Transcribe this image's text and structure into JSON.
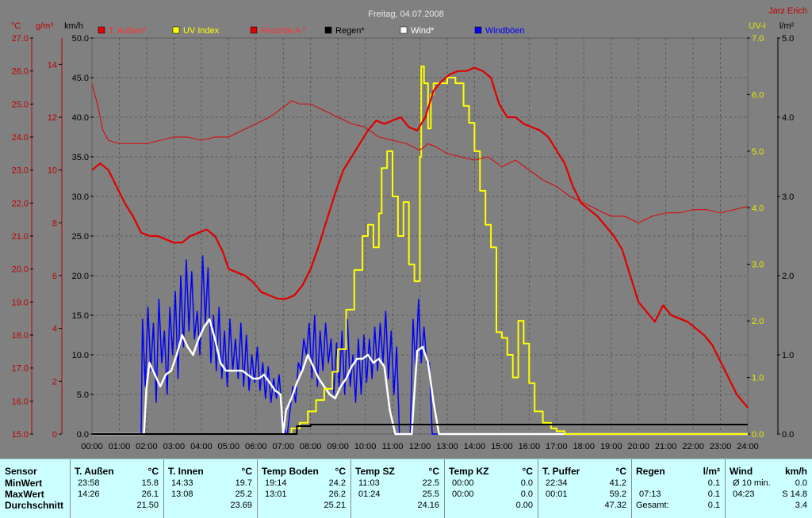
{
  "title": "Freitag, 04.07.2008",
  "author": "Jarz Erich",
  "axis_units": {
    "temp": "°C",
    "humidity": "g/m³",
    "wind": "km/h",
    "uv": "UV-I",
    "rain": "l/m²"
  },
  "legend": [
    {
      "label": "T. Außen*",
      "color": "#e00000",
      "text_color": "#ff3030"
    },
    {
      "label": "UV Index",
      "color": "#ffff00",
      "text_color": "#ffff00"
    },
    {
      "label": "Feuchte A.*",
      "color": "#e00000",
      "text_color": "#ff3030"
    },
    {
      "label": "Regen*",
      "color": "#000000",
      "text_color": "#000000"
    },
    {
      "label": "Wind*",
      "color": "#ffffff",
      "text_color": "#ffffff"
    },
    {
      "label": "Windböen",
      "color": "#0000ff",
      "text_color": "#0000ff"
    }
  ],
  "colors": {
    "background": "#808080",
    "grid": "#5a5a5a",
    "temp": "#e00000",
    "uv": "#ffff00",
    "rain": "#000000",
    "wind": "#ffffff",
    "gust": "#0000ff"
  },
  "chart_data": {
    "type": "line",
    "x_label_hours": [
      "00:00",
      "01:00",
      "02:00",
      "03:00",
      "04:00",
      "05:00",
      "06:00",
      "07:00",
      "08:00",
      "09:00",
      "10:00",
      "11:00",
      "12:00",
      "13:00",
      "14:00",
      "15:00",
      "16:00",
      "17:00",
      "18:00",
      "19:00",
      "20:00",
      "21:00",
      "22:00",
      "23:00",
      "24:00"
    ],
    "axes": {
      "temp_ticks": [
        "27.0",
        "26.0",
        "25.0",
        "24.0",
        "23.0",
        "22.0",
        "21.0",
        "20.0",
        "19.0",
        "18.0",
        "17.0",
        "16.0",
        "15.0"
      ],
      "temp_range": [
        15,
        27
      ],
      "humidity_ticks": [
        "14",
        "12",
        "10",
        "8",
        "6",
        "4",
        "2",
        "0"
      ],
      "humidity_range": [
        0,
        15
      ],
      "wind_ticks": [
        "50.0",
        "45.0",
        "40.0",
        "35.0",
        "30.0",
        "25.0",
        "20.0",
        "15.0",
        "10.0",
        "5.0",
        "0.0"
      ],
      "wind_range": [
        0,
        50
      ],
      "uv_ticks": [
        "7.0",
        "6.0",
        "5.0",
        "4.0",
        "3.0",
        "2.0",
        "1.0",
        "0.0"
      ],
      "uv_range": [
        0,
        7
      ],
      "rain_ticks": [
        "5.0",
        "4.0",
        "3.0",
        "2.0",
        "1.0",
        "0.0"
      ],
      "rain_range": [
        0,
        5
      ]
    },
    "series": [
      {
        "name": "T. Außen*",
        "axis": "temp",
        "x": [
          0,
          0.3,
          0.6,
          0.9,
          1.2,
          1.5,
          1.8,
          2.1,
          2.4,
          2.7,
          3.0,
          3.3,
          3.6,
          3.9,
          4.2,
          4.5,
          4.8,
          5.0,
          5.3,
          5.6,
          5.9,
          6.2,
          6.5,
          6.8,
          7.1,
          7.4,
          7.7,
          8.0,
          8.3,
          8.6,
          8.9,
          9.2,
          9.5,
          9.8,
          10.1,
          10.4,
          10.7,
          11.0,
          11.3,
          11.6,
          11.9,
          12.2,
          12.5,
          12.8,
          13.1,
          13.4,
          13.7,
          14.0,
          14.3,
          14.6,
          14.9,
          15.2,
          15.5,
          15.8,
          16.1,
          16.4,
          16.7,
          17.0,
          17.3,
          17.6,
          17.9,
          18.2,
          18.5,
          18.8,
          19.1,
          19.4,
          19.7,
          20.0,
          20.3,
          20.6,
          20.9,
          21.2,
          21.5,
          21.8,
          22.1,
          22.4,
          22.7,
          23.0,
          23.3,
          23.6,
          24.0
        ],
        "y": [
          23.0,
          23.2,
          23.0,
          22.5,
          22.0,
          21.6,
          21.1,
          21.0,
          21.0,
          20.9,
          20.8,
          20.8,
          21.0,
          21.1,
          21.2,
          21.0,
          20.5,
          20.0,
          19.9,
          19.8,
          19.6,
          19.3,
          19.2,
          19.1,
          19.1,
          19.2,
          19.5,
          20.0,
          20.7,
          21.5,
          22.3,
          23.0,
          23.4,
          23.8,
          24.2,
          24.5,
          24.4,
          24.5,
          24.6,
          24.3,
          24.2,
          24.6,
          25.4,
          25.7,
          25.9,
          26.0,
          26.0,
          26.1,
          26.0,
          25.8,
          25.0,
          24.6,
          24.6,
          24.4,
          24.3,
          24.2,
          24.0,
          23.6,
          23.2,
          22.5,
          22.0,
          21.8,
          21.6,
          21.3,
          21.0,
          20.6,
          19.8,
          19.0,
          18.7,
          18.4,
          18.9,
          18.6,
          18.5,
          18.4,
          18.2,
          18.0,
          17.7,
          17.2,
          16.7,
          16.2,
          15.8
        ]
      },
      {
        "name": "Feuchte A.*",
        "axis": "temp",
        "x": [
          0,
          0.2,
          0.4,
          0.6,
          1.0,
          1.5,
          2.0,
          2.5,
          3.0,
          3.5,
          4.0,
          4.5,
          5.0,
          5.5,
          6.0,
          6.5,
          7.0,
          7.3,
          7.6,
          8.0,
          8.5,
          9.0,
          9.5,
          10.0,
          10.5,
          11.0,
          11.5,
          12.0,
          12.3,
          12.6,
          13.0,
          13.5,
          14.0,
          14.5,
          15.0,
          15.5,
          16.0,
          16.5,
          17.0,
          17.5,
          18.0,
          18.5,
          19.0,
          19.5,
          20.0,
          20.5,
          21.0,
          21.5,
          22.0,
          22.5,
          23.0,
          23.5,
          24.0
        ],
        "y": [
          25.6,
          25.0,
          24.2,
          23.9,
          23.8,
          23.8,
          23.8,
          23.9,
          24.0,
          24.0,
          23.9,
          24.0,
          24.0,
          24.2,
          24.4,
          24.6,
          24.9,
          25.1,
          25.0,
          25.0,
          24.8,
          24.6,
          24.4,
          24.3,
          24.0,
          23.9,
          23.8,
          23.6,
          23.8,
          23.7,
          23.5,
          23.4,
          23.3,
          23.4,
          23.1,
          23.3,
          23.0,
          22.7,
          22.5,
          22.2,
          22.0,
          21.8,
          21.6,
          21.6,
          21.4,
          21.6,
          21.7,
          21.7,
          21.8,
          21.8,
          21.7,
          21.8,
          21.9
        ]
      },
      {
        "name": "UV Index",
        "axis": "uv",
        "x": [
          0,
          7.0,
          7.3,
          7.6,
          7.9,
          8.2,
          8.5,
          8.8,
          9.0,
          9.3,
          9.6,
          9.9,
          10.1,
          10.3,
          10.5,
          10.6,
          10.8,
          11.0,
          11.2,
          11.4,
          11.6,
          11.8,
          12.0,
          12.05,
          12.15,
          12.3,
          12.4,
          12.5,
          12.7,
          13.0,
          13.3,
          13.6,
          13.8,
          14.0,
          14.2,
          14.4,
          14.6,
          14.8,
          15.0,
          15.2,
          15.4,
          15.6,
          15.8,
          16.0,
          16.2,
          16.5,
          16.8,
          17.0,
          17.3,
          17.6,
          17.9,
          18.2,
          24.0
        ],
        "y": [
          0,
          0,
          0.1,
          0.2,
          0.4,
          0.6,
          0.8,
          1.1,
          1.5,
          2.2,
          2.9,
          3.5,
          3.7,
          3.3,
          3.9,
          4.7,
          5.0,
          4.2,
          3.5,
          4.1,
          3.0,
          2.7,
          4.9,
          6.5,
          6.2,
          5.4,
          6.0,
          6.2,
          6.2,
          6.3,
          6.2,
          5.8,
          5.5,
          5.0,
          4.3,
          3.7,
          3.3,
          1.8,
          1.7,
          1.4,
          1.0,
          2.0,
          1.6,
          0.9,
          0.4,
          0.2,
          0.1,
          0.05,
          0,
          0,
          0,
          0,
          0
        ]
      },
      {
        "name": "Wind*",
        "axis": "wind",
        "x": [
          0,
          1.9,
          2.0,
          2.1,
          2.3,
          2.5,
          2.7,
          2.9,
          3.1,
          3.3,
          3.5,
          3.7,
          3.9,
          4.1,
          4.3,
          4.5,
          4.7,
          4.9,
          5.1,
          5.3,
          5.5,
          5.7,
          5.9,
          6.1,
          6.3,
          6.5,
          6.7,
          6.9,
          7.0,
          7.1,
          7.3,
          7.5,
          7.7,
          7.9,
          8.1,
          8.3,
          8.5,
          8.7,
          8.9,
          9.1,
          9.3,
          9.5,
          9.7,
          9.9,
          10.1,
          10.3,
          10.5,
          10.7,
          10.9,
          11.1,
          11.3,
          11.5,
          11.7,
          11.9,
          12.1,
          12.3,
          12.5,
          12.7,
          24.0
        ],
        "y": [
          0,
          0,
          6.0,
          9.0,
          7.5,
          6.0,
          7.5,
          8.0,
          10.0,
          12.5,
          11.0,
          10.0,
          12.0,
          13.5,
          14.5,
          12.0,
          9.0,
          8.0,
          8.0,
          8.0,
          8.0,
          7.5,
          7.0,
          7.0,
          7.5,
          6.5,
          5.5,
          5.0,
          0,
          3.0,
          4.5,
          6.5,
          8.0,
          10.0,
          8.5,
          7.0,
          6.0,
          5.0,
          4.5,
          6.0,
          7.0,
          8.5,
          9.5,
          9.5,
          10.0,
          9.0,
          9.5,
          8.5,
          3.0,
          0,
          0,
          0,
          0,
          10.5,
          11.0,
          9.0,
          4.0,
          0,
          0
        ]
      },
      {
        "name": "Windböen",
        "axis": "wind",
        "x": [
          0,
          1.8,
          1.85,
          1.95,
          2.05,
          2.15,
          2.25,
          2.35,
          2.45,
          2.55,
          2.65,
          2.75,
          2.85,
          2.95,
          3.05,
          3.15,
          3.25,
          3.35,
          3.45,
          3.55,
          3.65,
          3.75,
          3.85,
          3.95,
          4.05,
          4.15,
          4.25,
          4.35,
          4.45,
          4.55,
          4.65,
          4.75,
          4.85,
          4.95,
          5.05,
          5.15,
          5.25,
          5.35,
          5.45,
          5.55,
          5.65,
          5.75,
          5.85,
          5.95,
          6.05,
          6.15,
          6.25,
          6.35,
          6.45,
          6.55,
          6.65,
          6.75,
          6.85,
          6.95,
          7.05,
          7.1,
          7.15,
          7.25,
          7.35,
          7.45,
          7.55,
          7.65,
          7.75,
          7.85,
          7.95,
          8.05,
          8.15,
          8.25,
          8.35,
          8.45,
          8.55,
          8.65,
          8.75,
          8.85,
          8.95,
          9.05,
          9.15,
          9.25,
          9.35,
          9.45,
          9.55,
          9.65,
          9.75,
          9.85,
          9.95,
          10.05,
          10.15,
          10.25,
          10.35,
          10.45,
          10.55,
          10.65,
          10.75,
          10.85,
          10.95,
          11.05,
          11.15,
          11.25,
          11.35,
          11.45,
          11.55,
          11.65,
          11.75,
          11.85,
          11.95,
          12.05,
          12.15,
          12.25,
          12.35,
          12.45,
          24.0
        ],
        "y": [
          0,
          0,
          14.5,
          6.0,
          16.0,
          8.0,
          14.0,
          4.0,
          17.0,
          9.0,
          13.0,
          5.0,
          16.0,
          10.0,
          18.0,
          7.0,
          20.0,
          11.0,
          22.0,
          13.0,
          20.5,
          12.0,
          15.5,
          10.0,
          22.5,
          14.0,
          21.0,
          9.0,
          15.0,
          8.0,
          16.0,
          7.0,
          13.0,
          6.0,
          14.5,
          8.0,
          12.0,
          7.0,
          14.0,
          6.0,
          12.5,
          5.5,
          10.0,
          6.5,
          11.0,
          5.5,
          9.0,
          4.5,
          8.5,
          4.0,
          7.0,
          4.5,
          7.5,
          3.0,
          0.5,
          0,
          0,
          3.0,
          6.0,
          4.0,
          9.0,
          8.0,
          12.0,
          10.0,
          14.0,
          7.0,
          15.0,
          6.0,
          13.0,
          8.0,
          14.0,
          9.0,
          12.0,
          5.0,
          11.5,
          6.0,
          13.0,
          5.0,
          14.5,
          6.0,
          10.0,
          4.0,
          12.0,
          5.0,
          12.5,
          6.5,
          12.0,
          7.0,
          13.5,
          8.0,
          14.0,
          9.0,
          15.5,
          7.0,
          13.0,
          5.0,
          11.0,
          0,
          0,
          0,
          0,
          0,
          14.5,
          8.0,
          17.0,
          9.0,
          13.5,
          9.0,
          9.0,
          0,
          0
        ]
      },
      {
        "name": "Regen*",
        "axis": "rain",
        "x": [
          0,
          7.0,
          7.5,
          8.0,
          24.0
        ],
        "y": [
          0,
          0,
          0.1,
          0.12,
          0.12
        ]
      }
    ]
  },
  "stats": {
    "columns": [
      {
        "name": "T. Außen",
        "unit": "°C",
        "min_time": "23:58",
        "min_val": "15.8",
        "max_time": "14:26",
        "max_val": "26.1",
        "avg": "21.50"
      },
      {
        "name": "T. Innen",
        "unit": "°C",
        "min_time": "14:33",
        "min_val": "19.7",
        "max_time": "13:08",
        "max_val": "25.2",
        "avg": "23.69"
      },
      {
        "name": "Temp Boden",
        "unit": "°C",
        "min_time": "19:14",
        "min_val": "24.2",
        "max_time": "13:01",
        "max_val": "26.2",
        "avg": "25.21"
      },
      {
        "name": "Temp SZ",
        "unit": "°C",
        "min_time": "11:03",
        "min_val": "22.5",
        "max_time": "01:24",
        "max_val": "25.5",
        "avg": "24.16"
      },
      {
        "name": "Temp KZ",
        "unit": "°C",
        "min_time": "00:00",
        "min_val": "0.0",
        "max_time": "00:00",
        "max_val": "0.0",
        "avg": "0.00"
      },
      {
        "name": "T. Puffer",
        "unit": "°C",
        "min_time": "22:34",
        "min_val": "41.2",
        "max_time": "00:01",
        "max_val": "59.2",
        "avg": "47.32"
      },
      {
        "name": "Regen",
        "unit": "l/m²",
        "min_time": "",
        "min_val": "0.1",
        "max_time": "07:13",
        "max_val": "0.1",
        "avg_label": "Gesamt:",
        "avg": "0.1"
      },
      {
        "name": "Wind",
        "unit": "km/h",
        "min_time": "Ø 10 min.",
        "min_val": "0.0",
        "max_time": "04:23",
        "max_val": "S 14.8",
        "avg": "3.4"
      }
    ],
    "row_labels": {
      "sensor": "Sensor",
      "min": "MinWert",
      "max": "MaxWert",
      "avg": "Durchschnitt"
    }
  }
}
